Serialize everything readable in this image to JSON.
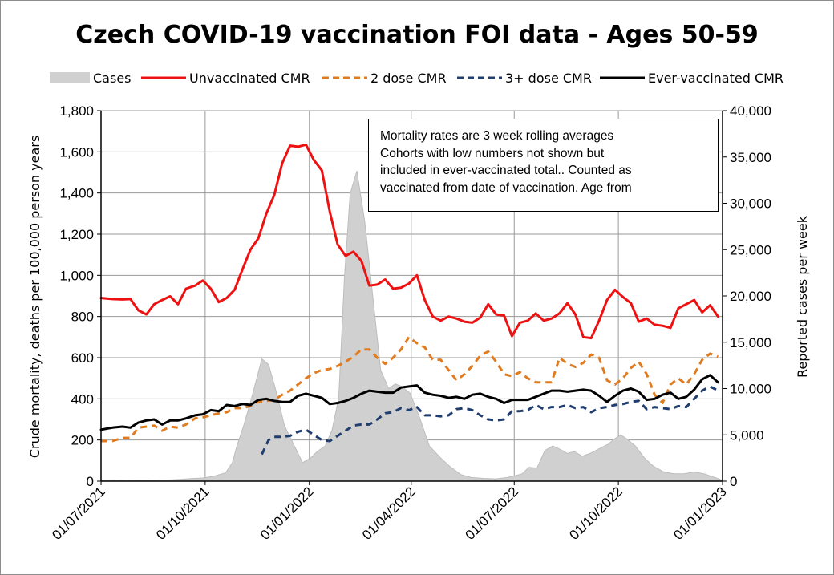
{
  "chart_data": {
    "type": "line",
    "title": "Czech COVID-19 vaccination FOI data - Ages 50-59",
    "ylabel": "Crude mortality, deaths per 100,000 person years",
    "y2label": "Reported cases per week",
    "ylim": [
      0,
      1800
    ],
    "y2lim": [
      0,
      40000
    ],
    "xlim": [
      "2021-07-01",
      "2023-01-01"
    ],
    "x_tick_labels": [
      "01/07/2021",
      "01/10/2021",
      "01/01/2022",
      "01/04/2022",
      "01/07/2022",
      "01/10/2022",
      "01/01/2023"
    ],
    "y_tick_labels": [
      "0",
      "200",
      "400",
      "600",
      "800",
      "1,000",
      "1,200",
      "1,400",
      "1,600",
      "1,800"
    ],
    "y2_tick_labels": [
      "0",
      "5,000",
      "10,000",
      "15,000",
      "20,000",
      "25,000",
      "30,000",
      "35,000",
      "40,000"
    ],
    "grid": true,
    "legend_position": "top",
    "annotation": [
      "Mortality rates are 3 week rolling averages",
      "Cohorts with low numbers not shown but",
      "included in ever-vaccinated total.. Counted as",
      "vaccinated from date of vaccination. Age from"
    ],
    "series": [
      {
        "name": "Cases",
        "kind": "area",
        "axis": "right",
        "color": "#d0d0d0",
        "x": [
          "2021-07-01",
          "2021-07-11",
          "2021-07-21",
          "2021-07-31",
          "2021-08-10",
          "2021-08-20",
          "2021-08-30",
          "2021-09-09",
          "2021-09-19",
          "2021-09-29",
          "2021-10-09",
          "2021-10-19",
          "2021-10-25",
          "2021-10-29",
          "2021-11-04",
          "2021-11-11",
          "2021-11-20",
          "2021-11-26",
          "2021-12-02",
          "2021-12-10",
          "2021-12-18",
          "2021-12-26",
          "2022-01-02",
          "2022-01-08",
          "2022-01-15",
          "2022-01-21",
          "2022-01-27",
          "2022-02-01",
          "2022-02-06",
          "2022-02-12",
          "2022-02-19",
          "2022-02-26",
          "2022-03-05",
          "2022-03-12",
          "2022-03-18",
          "2022-03-24",
          "2022-03-31",
          "2022-04-08",
          "2022-04-17",
          "2022-04-27",
          "2022-05-06",
          "2022-05-15",
          "2022-05-24",
          "2022-06-04",
          "2022-06-15",
          "2022-06-25",
          "2022-07-02",
          "2022-07-08",
          "2022-07-14",
          "2022-07-21",
          "2022-07-28",
          "2022-08-04",
          "2022-08-11",
          "2022-08-17",
          "2022-08-23",
          "2022-08-30",
          "2022-09-06",
          "2022-09-14",
          "2022-09-22",
          "2022-09-28",
          "2022-10-03",
          "2022-10-08",
          "2022-10-16",
          "2022-10-24",
          "2022-11-01",
          "2022-11-10",
          "2022-11-19",
          "2022-11-28",
          "2022-12-07",
          "2022-12-16",
          "2022-12-25",
          "2023-01-01"
        ],
        "values": [
          60,
          80,
          100,
          80,
          60,
          100,
          130,
          200,
          280,
          350,
          550,
          900,
          2000,
          3800,
          6000,
          9000,
          13200,
          12600,
          10000,
          6000,
          4000,
          2000,
          2500,
          3200,
          3800,
          5500,
          9000,
          22000,
          31000,
          33500,
          28000,
          20000,
          12000,
          10000,
          10500,
          10200,
          9500,
          7000,
          3800,
          2500,
          1500,
          700,
          400,
          300,
          250,
          400,
          600,
          800,
          1500,
          1400,
          3300,
          3800,
          3400,
          3000,
          3200,
          2700,
          3000,
          3500,
          4000,
          4600,
          5000,
          4600,
          3800,
          2500,
          1600,
          1000,
          800,
          800,
          1000,
          800,
          400,
          100
        ]
      },
      {
        "name": "Unvaccinated CMR",
        "kind": "line",
        "axis": "left",
        "color": "#ee1111",
        "x": [
          "2021-07-01",
          "2021-07-11",
          "2021-07-20",
          "2021-07-27",
          "2021-08-03",
          "2021-08-10",
          "2021-08-17",
          "2021-08-24",
          "2021-08-31",
          "2021-09-07",
          "2021-09-14",
          "2021-09-22",
          "2021-09-29",
          "2021-10-06",
          "2021-10-13",
          "2021-10-20",
          "2021-10-27",
          "2021-11-03",
          "2021-11-10",
          "2021-11-17",
          "2021-11-24",
          "2021-12-01",
          "2021-12-08",
          "2021-12-15",
          "2021-12-22",
          "2021-12-29",
          "2022-01-05",
          "2022-01-12",
          "2022-01-19",
          "2022-01-26",
          "2022-02-02",
          "2022-02-09",
          "2022-02-16",
          "2022-02-23",
          "2022-03-02",
          "2022-03-09",
          "2022-03-16",
          "2022-03-23",
          "2022-03-30",
          "2022-04-06",
          "2022-04-13",
          "2022-04-20",
          "2022-04-27",
          "2022-05-04",
          "2022-05-11",
          "2022-05-18",
          "2022-05-25",
          "2022-06-01",
          "2022-06-08",
          "2022-06-15",
          "2022-06-22",
          "2022-06-29",
          "2022-07-06",
          "2022-07-13",
          "2022-07-20",
          "2022-07-27",
          "2022-08-03",
          "2022-08-10",
          "2022-08-17",
          "2022-08-24",
          "2022-08-31",
          "2022-09-07",
          "2022-09-14",
          "2022-09-21",
          "2022-09-28",
          "2022-10-05",
          "2022-10-12",
          "2022-10-19",
          "2022-10-26",
          "2022-11-02",
          "2022-11-09",
          "2022-11-16",
          "2022-11-23",
          "2022-11-30",
          "2022-12-07",
          "2022-12-14",
          "2022-12-21",
          "2022-12-28"
        ],
        "values": [
          890,
          885,
          883,
          885,
          830,
          810,
          860,
          880,
          898,
          860,
          935,
          950,
          975,
          935,
          870,
          890,
          930,
          1030,
          1125,
          1180,
          1300,
          1390,
          1545,
          1630,
          1625,
          1635,
          1560,
          1510,
          1310,
          1150,
          1095,
          1115,
          1070,
          950,
          955,
          980,
          935,
          940,
          960,
          1000,
          880,
          800,
          780,
          800,
          790,
          775,
          770,
          795,
          860,
          810,
          805,
          705,
          770,
          780,
          815,
          780,
          790,
          815,
          865,
          810,
          700,
          695,
          780,
          880,
          930,
          895,
          865,
          775,
          790,
          760,
          755,
          745,
          840,
          860,
          880,
          820,
          855,
          800
        ]
      },
      {
        "name": "2 dose CMR",
        "kind": "line",
        "dash": "dashed",
        "axis": "left",
        "color": "#e07b20",
        "x": [
          "2021-07-01",
          "2021-07-11",
          "2021-07-20",
          "2021-07-27",
          "2021-08-03",
          "2021-08-10",
          "2021-08-17",
          "2021-08-24",
          "2021-08-31",
          "2021-09-07",
          "2021-09-14",
          "2021-09-22",
          "2021-09-29",
          "2021-10-06",
          "2021-10-13",
          "2021-10-20",
          "2021-10-27",
          "2021-11-03",
          "2021-11-10",
          "2021-11-17",
          "2021-11-24",
          "2021-12-01",
          "2021-12-08",
          "2021-12-15",
          "2021-12-22",
          "2021-12-29",
          "2022-01-05",
          "2022-01-12",
          "2022-01-19",
          "2022-01-26",
          "2022-02-02",
          "2022-02-09",
          "2022-02-16",
          "2022-02-23",
          "2022-03-02",
          "2022-03-09",
          "2022-03-16",
          "2022-03-23",
          "2022-03-30",
          "2022-04-06",
          "2022-04-13",
          "2022-04-20",
          "2022-04-27",
          "2022-05-04",
          "2022-05-11",
          "2022-05-18",
          "2022-05-25",
          "2022-06-01",
          "2022-06-08",
          "2022-06-15",
          "2022-06-22",
          "2022-06-29",
          "2022-07-06",
          "2022-07-13",
          "2022-07-20",
          "2022-07-27",
          "2022-08-03",
          "2022-08-10",
          "2022-08-17",
          "2022-08-24",
          "2022-08-31",
          "2022-09-07",
          "2022-09-14",
          "2022-09-21",
          "2022-09-28",
          "2022-10-05",
          "2022-10-12",
          "2022-10-19",
          "2022-10-26",
          "2022-11-02",
          "2022-11-09",
          "2022-11-16",
          "2022-11-23",
          "2022-11-30",
          "2022-12-07",
          "2022-12-14",
          "2022-12-21",
          "2022-12-28"
        ],
        "values": [
          195,
          195,
          210,
          210,
          260,
          265,
          270,
          245,
          265,
          260,
          275,
          305,
          310,
          320,
          330,
          335,
          355,
          355,
          365,
          385,
          390,
          395,
          420,
          440,
          470,
          500,
          525,
          540,
          545,
          560,
          580,
          605,
          640,
          640,
          600,
          570,
          600,
          640,
          700,
          670,
          650,
          590,
          590,
          540,
          490,
          520,
          560,
          610,
          630,
          580,
          520,
          510,
          530,
          500,
          480,
          480,
          480,
          600,
          570,
          555,
          575,
          615,
          600,
          490,
          470,
          500,
          550,
          580,
          520,
          420,
          380,
          470,
          500,
          470,
          520,
          590,
          620,
          605
        ]
      },
      {
        "name": "3+ dose CMR",
        "kind": "line",
        "dash": "dashed",
        "axis": "left",
        "color": "#1f3d6e",
        "x": [
          "2021-11-20",
          "2021-11-26",
          "2021-12-01",
          "2021-12-08",
          "2021-12-15",
          "2021-12-22",
          "2021-12-29",
          "2022-01-05",
          "2022-01-12",
          "2022-01-19",
          "2022-01-26",
          "2022-02-02",
          "2022-02-09",
          "2022-02-16",
          "2022-02-23",
          "2022-03-02",
          "2022-03-09",
          "2022-03-16",
          "2022-03-23",
          "2022-03-30",
          "2022-04-06",
          "2022-04-13",
          "2022-04-20",
          "2022-04-27",
          "2022-05-04",
          "2022-05-11",
          "2022-05-18",
          "2022-05-25",
          "2022-06-01",
          "2022-06-08",
          "2022-06-15",
          "2022-06-22",
          "2022-06-29",
          "2022-07-06",
          "2022-07-13",
          "2022-07-20",
          "2022-07-27",
          "2022-08-03",
          "2022-08-10",
          "2022-08-17",
          "2022-08-24",
          "2022-08-31",
          "2022-09-07",
          "2022-09-14",
          "2022-09-21",
          "2022-09-28",
          "2022-10-05",
          "2022-10-12",
          "2022-10-19",
          "2022-10-26",
          "2022-11-02",
          "2022-11-09",
          "2022-11-16",
          "2022-11-23",
          "2022-11-30",
          "2022-12-07",
          "2022-12-14",
          "2022-12-21",
          "2022-12-28"
        ],
        "values": [
          130,
          200,
          215,
          215,
          220,
          240,
          250,
          225,
          200,
          195,
          220,
          245,
          270,
          275,
          275,
          300,
          330,
          335,
          355,
          345,
          360,
          320,
          320,
          315,
          320,
          350,
          355,
          345,
          320,
          300,
          295,
          300,
          340,
          340,
          345,
          370,
          350,
          360,
          360,
          370,
          355,
          360,
          335,
          355,
          360,
          370,
          375,
          385,
          390,
          350,
          360,
          355,
          350,
          365,
          360,
          400,
          440,
          460,
          440
        ]
      },
      {
        "name": "Ever-vaccinated CMR",
        "kind": "line",
        "axis": "left",
        "color": "#000000",
        "x": [
          "2021-07-01",
          "2021-07-11",
          "2021-07-20",
          "2021-07-27",
          "2021-08-03",
          "2021-08-10",
          "2021-08-17",
          "2021-08-24",
          "2021-08-31",
          "2021-09-07",
          "2021-09-14",
          "2021-09-22",
          "2021-09-29",
          "2021-10-06",
          "2021-10-13",
          "2021-10-20",
          "2021-10-27",
          "2021-11-03",
          "2021-11-10",
          "2021-11-17",
          "2021-11-24",
          "2021-12-01",
          "2021-12-08",
          "2021-12-15",
          "2021-12-22",
          "2021-12-29",
          "2022-01-05",
          "2022-01-12",
          "2022-01-19",
          "2022-01-26",
          "2022-02-02",
          "2022-02-09",
          "2022-02-16",
          "2022-02-23",
          "2022-03-02",
          "2022-03-09",
          "2022-03-16",
          "2022-03-23",
          "2022-03-30",
          "2022-04-06",
          "2022-04-13",
          "2022-04-20",
          "2022-04-27",
          "2022-05-04",
          "2022-05-11",
          "2022-05-18",
          "2022-05-25",
          "2022-06-01",
          "2022-06-08",
          "2022-06-15",
          "2022-06-22",
          "2022-06-29",
          "2022-07-06",
          "2022-07-13",
          "2022-07-20",
          "2022-07-27",
          "2022-08-03",
          "2022-08-10",
          "2022-08-17",
          "2022-08-24",
          "2022-08-31",
          "2022-09-07",
          "2022-09-14",
          "2022-09-21",
          "2022-09-28",
          "2022-10-05",
          "2022-10-12",
          "2022-10-19",
          "2022-10-26",
          "2022-11-02",
          "2022-11-09",
          "2022-11-16",
          "2022-11-23",
          "2022-11-30",
          "2022-12-07",
          "2022-12-14",
          "2022-12-21",
          "2022-12-28"
        ],
        "values": [
          250,
          260,
          265,
          260,
          285,
          295,
          300,
          275,
          295,
          295,
          305,
          320,
          325,
          345,
          340,
          370,
          365,
          375,
          370,
          395,
          400,
          390,
          385,
          385,
          415,
          425,
          415,
          405,
          375,
          380,
          390,
          405,
          425,
          440,
          435,
          430,
          430,
          455,
          460,
          465,
          430,
          420,
          415,
          405,
          410,
          400,
          420,
          425,
          410,
          400,
          380,
          395,
          395,
          395,
          410,
          425,
          440,
          440,
          435,
          440,
          445,
          440,
          415,
          385,
          415,
          440,
          450,
          435,
          395,
          400,
          420,
          430,
          400,
          410,
          445,
          495,
          515,
          480
        ]
      }
    ]
  }
}
